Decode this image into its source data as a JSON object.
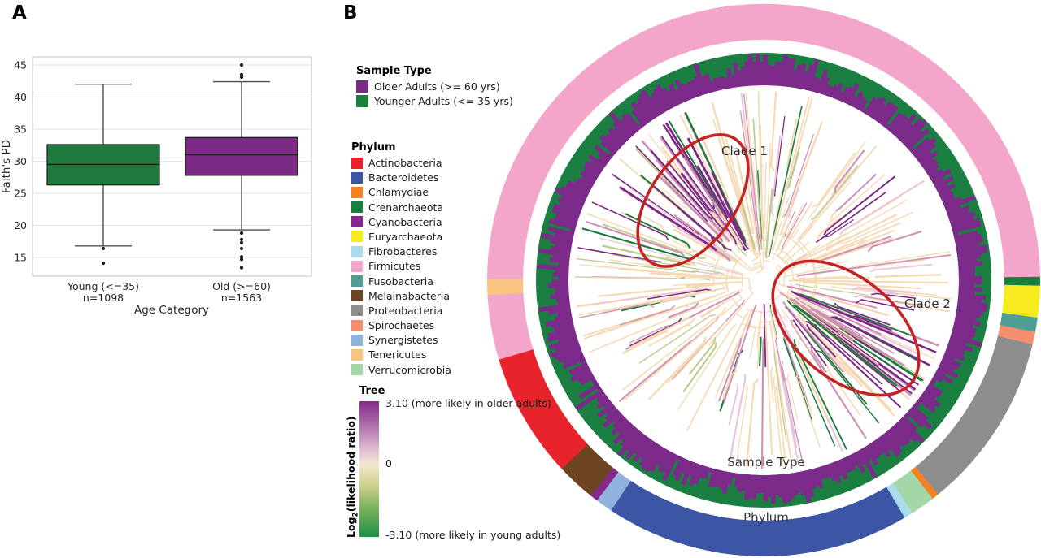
{
  "figure": {
    "panel_a_label": "A",
    "panel_b_label": "B"
  },
  "legends": {
    "sample_type": {
      "title": "Sample Type",
      "items": [
        {
          "label": "Older Adults (>= 60 yrs)",
          "color": "#7b2a85"
        },
        {
          "label": "Younger Adults (<= 35 yrs)",
          "color": "#1b7f42"
        }
      ]
    },
    "phylum": {
      "title": "Phylum",
      "items": [
        {
          "label": "Actinobacteria",
          "color": "#e8232b"
        },
        {
          "label": "Bacteroidetes",
          "color": "#3c55a5"
        },
        {
          "label": "Chlamydiae",
          "color": "#f58220"
        },
        {
          "label": "Crenarchaeota",
          "color": "#18803e"
        },
        {
          "label": "Cyanobacteria",
          "color": "#84288c"
        },
        {
          "label": "Euryarchaeota",
          "color": "#f5eb1e"
        },
        {
          "label": "Fibrobacteres",
          "color": "#abdced"
        },
        {
          "label": "Firmicutes",
          "color": "#f3a6c9"
        },
        {
          "label": "Fusobacteria",
          "color": "#4f9e94"
        },
        {
          "label": "Melainabacteria",
          "color": "#6d4523"
        },
        {
          "label": "Proteobacteria",
          "color": "#8d8d8d"
        },
        {
          "label": "Spirochaetes",
          "color": "#f48e6e"
        },
        {
          "label": "Synergistetes",
          "color": "#90b3de"
        },
        {
          "label": "Tenericutes",
          "color": "#f8c480"
        },
        {
          "label": "Verrucomicrobia",
          "color": "#a3d7a7"
        }
      ]
    },
    "tree": {
      "title": "Tree",
      "top_label": "3.10 (more likely in older adults)",
      "mid_label": "0",
      "bottom_label": "-3.10 (more likely in young adults)",
      "axis_prefix": "Log",
      "axis_sub": "2",
      "axis_suffix": "(likelihood ratio)",
      "gradient": [
        "#872b88",
        "#b478b1",
        "#e0b9ce",
        "#f3e7d1",
        "#cfd08c",
        "#7ab15b",
        "#1f9148"
      ]
    }
  },
  "chart_data": [
    {
      "type": "boxplot",
      "title": "",
      "xlabel": "Age Category",
      "ylabel": "Faith's PD",
      "ylim": [
        12.1,
        46.3
      ],
      "yticks": [
        15,
        20,
        25,
        30,
        35,
        40,
        45
      ],
      "grid": true,
      "groups": [
        {
          "label": "Young (<=35)",
          "n_label": "n=1098",
          "color": "#1e7b3d",
          "q1": 26.3,
          "median": 29.5,
          "q3": 32.6,
          "whisker_low": 16.8,
          "whisker_high": 42.0,
          "outliers": [
            16.4,
            14.1
          ]
        },
        {
          "label": "Old (>=60)",
          "n_label": "n=1563",
          "color": "#7b2a85",
          "q1": 27.8,
          "median": 31.0,
          "q3": 33.7,
          "whisker_low": 19.3,
          "whisker_high": 42.4,
          "outliers": [
            45.0,
            43.5,
            43.1,
            18.8,
            17.8,
            17.3,
            16.4,
            15.1,
            14.7,
            13.4
          ]
        }
      ]
    },
    {
      "type": "circular_phylogeny",
      "clade1_label": "Clade 1",
      "clade2_label": "Clade 2",
      "sample_ring": {
        "label": "Sample Type",
        "inner_series": "Older Adults (>= 60 yrs)",
        "inner_color": "#7d2b8b",
        "outer_series": "Younger Adults (<= 35 yrs)",
        "outer_color": "#1b7f42"
      },
      "phylum_ring": {
        "label": "Phylum",
        "segments_deg_clockwise_from_east": [
          {
            "phylum": "Crenarchaeota",
            "start_deg": -0.6,
            "end_deg": 1.0
          },
          {
            "phylum": "Euryarchaeota",
            "start_deg": 1.0,
            "end_deg": 7.9
          },
          {
            "phylum": "Fusobacteria",
            "start_deg": 7.9,
            "end_deg": 10.9
          },
          {
            "phylum": "Spirochaetes",
            "start_deg": 10.9,
            "end_deg": 13.3
          },
          {
            "phylum": "Proteobacteria",
            "start_deg": 13.3,
            "end_deg": 51.0
          },
          {
            "phylum": "Chlamydiae",
            "start_deg": 51.0,
            "end_deg": 52.2
          },
          {
            "phylum": "Verrucomicrobia",
            "start_deg": 52.2,
            "end_deg": 57.6
          },
          {
            "phylum": "Fibrobacteres",
            "start_deg": 57.6,
            "end_deg": 59.2
          },
          {
            "phylum": "Bacteroidetes",
            "start_deg": 59.2,
            "end_deg": 123.6
          },
          {
            "phylum": "Synergistetes",
            "start_deg": 123.6,
            "end_deg": 127.2
          },
          {
            "phylum": "Cyanobacteria",
            "start_deg": 127.2,
            "end_deg": 128.6
          },
          {
            "phylum": "Melainabacteria",
            "start_deg": 128.6,
            "end_deg": 136.8
          },
          {
            "phylum": "Actinobacteria",
            "start_deg": 136.8,
            "end_deg": 163.4
          },
          {
            "phylum": "Firmicutes",
            "start_deg": 163.4,
            "end_deg": 177.0
          },
          {
            "phylum": "Tenericutes",
            "start_deg": 177.0,
            "end_deg": 180.2
          },
          {
            "phylum": "Firmicutes",
            "start_deg": 180.2,
            "end_deg": 359.4
          }
        ]
      },
      "tree": {
        "colormap_range": [
          -3.1,
          3.1
        ],
        "branch_palette": {
          "neutral": "#f6d9b2",
          "mauve": "#cf90b6",
          "light_pink": "#eac4da",
          "olive": "#bdcb8e",
          "older": "#7b2a85",
          "younger": "#1e7d3c"
        },
        "annotation_color": "#c32323"
      }
    }
  ]
}
